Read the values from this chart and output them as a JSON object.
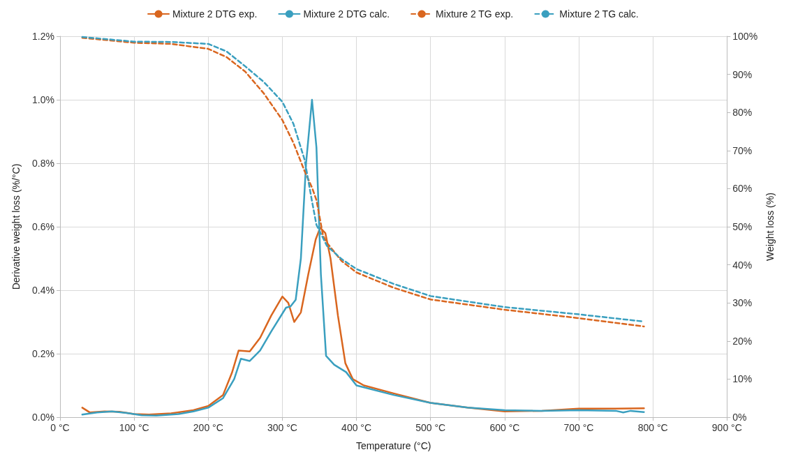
{
  "chart_data": {
    "type": "line",
    "xlabel": "Temperature (°C)",
    "ylabel": "Derivative weight loss (%/°C)",
    "y2label": "Weight loss (%)",
    "legend": "top",
    "grid": true,
    "marker": "none",
    "xlim": [
      0,
      900
    ],
    "xticks": [
      {
        "value": 0,
        "label": "0 °C"
      },
      {
        "value": 100,
        "label": "100 °C"
      },
      {
        "value": 200,
        "label": "200 °C"
      },
      {
        "value": 300,
        "label": "300 °C"
      },
      {
        "value": 400,
        "label": "400 °C"
      },
      {
        "value": 500,
        "label": "500 °C"
      },
      {
        "value": 600,
        "label": "600 °C"
      },
      {
        "value": 700,
        "label": "700 °C"
      },
      {
        "value": 800,
        "label": "800 °C"
      },
      {
        "value": 900,
        "label": "900 °C"
      }
    ],
    "ylim": [
      0,
      1.2
    ],
    "yticks": [
      {
        "value": 0,
        "label": "0.0%"
      },
      {
        "value": 0.2,
        "label": "0.2%"
      },
      {
        "value": 0.4,
        "label": "0.4%"
      },
      {
        "value": 0.6,
        "label": "0.6%"
      },
      {
        "value": 0.8,
        "label": "0.8%"
      },
      {
        "value": 1.0,
        "label": "1.0%"
      },
      {
        "value": 1.2,
        "label": "1.2%"
      }
    ],
    "y2lim": [
      0,
      100
    ],
    "y2ticks": [
      {
        "value": 0,
        "label": "0%"
      },
      {
        "value": 10,
        "label": "10%"
      },
      {
        "value": 20,
        "label": "20%"
      },
      {
        "value": 30,
        "label": "30%"
      },
      {
        "value": 40,
        "label": "40%"
      },
      {
        "value": 50,
        "label": "50%"
      },
      {
        "value": 60,
        "label": "60%"
      },
      {
        "value": 70,
        "label": "70%"
      },
      {
        "value": 80,
        "label": "80%"
      },
      {
        "value": 90,
        "label": "90%"
      },
      {
        "value": 100,
        "label": "100%"
      }
    ],
    "series": [
      {
        "name": "Mixture 2 DTG exp.",
        "color": "#d9661f",
        "line_style": "solid",
        "x": [
          30,
          40,
          60,
          80,
          100,
          120,
          150,
          180,
          200,
          220,
          232,
          241,
          256,
          270,
          285,
          300,
          308,
          316,
          325,
          335,
          345,
          351,
          358,
          365,
          375,
          385,
          395,
          410,
          450,
          500,
          550,
          600,
          650,
          700,
          750,
          788
        ],
        "values": [
          0.03,
          0.015,
          0.018,
          0.017,
          0.01,
          0.008,
          0.012,
          0.022,
          0.035,
          0.07,
          0.14,
          0.21,
          0.207,
          0.25,
          0.32,
          0.38,
          0.36,
          0.3,
          0.33,
          0.45,
          0.56,
          0.597,
          0.58,
          0.5,
          0.32,
          0.17,
          0.12,
          0.1,
          0.075,
          0.045,
          0.03,
          0.018,
          0.02,
          0.027,
          0.027,
          0.028
        ]
      },
      {
        "name": "Mixture 2 DTG calc.",
        "color": "#3a9fbf",
        "line_style": "solid",
        "x": [
          30,
          50,
          70,
          90,
          110,
          130,
          160,
          180,
          200,
          220,
          235,
          244,
          256,
          270,
          285,
          305,
          311,
          318,
          325,
          332,
          340,
          346,
          352,
          359,
          370,
          386,
          400,
          450,
          500,
          550,
          600,
          650,
          700,
          750,
          760,
          770,
          788
        ],
        "values": [
          0.008,
          0.015,
          0.018,
          0.013,
          0.006,
          0.005,
          0.01,
          0.018,
          0.03,
          0.06,
          0.12,
          0.184,
          0.177,
          0.21,
          0.27,
          0.345,
          0.349,
          0.37,
          0.5,
          0.8,
          1.0,
          0.85,
          0.45,
          0.193,
          0.165,
          0.142,
          0.1,
          0.07,
          0.045,
          0.03,
          0.022,
          0.02,
          0.022,
          0.02,
          0.015,
          0.02,
          0.016
        ]
      },
      {
        "name": "Mixture 2 TG exp.",
        "color": "#d9661f",
        "line_style": "dashed",
        "axis": "y2",
        "x": [
          30,
          100,
          150,
          200,
          225,
          250,
          275,
          300,
          315,
          330,
          340,
          346,
          355,
          360,
          380,
          400,
          450,
          500,
          600,
          700,
          788
        ],
        "values": [
          99.6,
          98.3,
          98,
          96.7,
          94.5,
          90.7,
          85,
          78,
          72,
          64.6,
          60.3,
          57,
          47.6,
          45.8,
          41,
          38,
          34,
          30.9,
          28.2,
          26,
          23.8
        ]
      },
      {
        "name": "Mixture 2 TG calc.",
        "color": "#3a9fbf",
        "line_style": "dashed",
        "axis": "y2",
        "x": [
          30,
          100,
          150,
          200,
          225,
          250,
          275,
          300,
          315,
          330,
          340,
          346,
          355,
          360,
          380,
          400,
          450,
          500,
          600,
          700,
          788
        ],
        "values": [
          99.8,
          98.6,
          98.5,
          98,
          96,
          92.1,
          88,
          82.8,
          77,
          67.6,
          56.7,
          50.5,
          47,
          45,
          41.5,
          38.9,
          35,
          31.8,
          28.9,
          27,
          25.1
        ]
      }
    ]
  }
}
